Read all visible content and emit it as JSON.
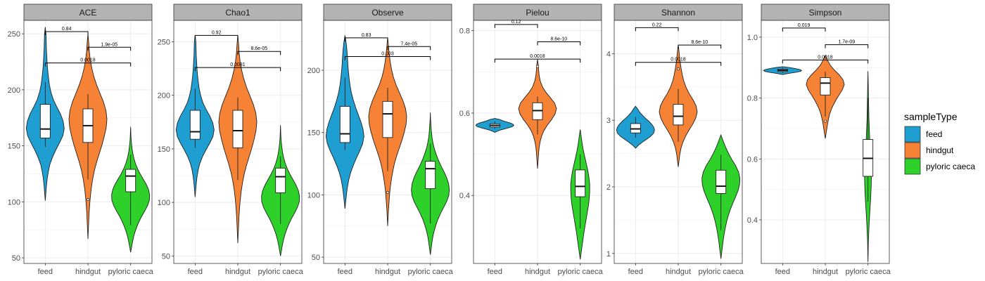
{
  "chart_data": {
    "type": "violin",
    "categories": [
      "feed",
      "hindgut",
      "pyloric caeca"
    ],
    "legend": {
      "title": "sampleType",
      "position": "right",
      "items": [
        {
          "label": "feed",
          "color": "#1f9ed1"
        },
        {
          "label": "hindgut",
          "color": "#f58235"
        },
        {
          "label": "pyloric caeca",
          "color": "#2ed12a"
        }
      ]
    },
    "grid": true,
    "panels": [
      {
        "title": "ACE",
        "ylim": [
          45,
          262
        ],
        "yticks": [
          {
            "v": 50,
            "label": "50"
          },
          {
            "v": 100,
            "label": "100"
          },
          {
            "v": 150,
            "label": "150"
          },
          {
            "v": 200,
            "label": "200"
          },
          {
            "v": 250,
            "label": "250"
          }
        ],
        "groups": [
          {
            "category": "feed",
            "min": 101,
            "max": 256,
            "q1": 157,
            "median": 165,
            "q3": 187,
            "wlo": 149,
            "whi": 207,
            "outliers": [],
            "profile": [
              0,
              0.03,
              0.06,
              0.1,
              0.16,
              0.24,
              0.38,
              0.55,
              0.75,
              0.93,
              1,
              0.94,
              0.8,
              0.6,
              0.42,
              0.3,
              0.22,
              0.17,
              0.13,
              0.1,
              0.08,
              0.06,
              0.05,
              0.04,
              0
            ]
          },
          {
            "category": "hindgut",
            "min": 67,
            "max": 250,
            "q1": 153,
            "median": 168,
            "q3": 183,
            "wlo": 120,
            "whi": 196,
            "outliers": [
              102
            ],
            "profile": [
              0,
              0.02,
              0.04,
              0.06,
              0.09,
              0.13,
              0.18,
              0.25,
              0.34,
              0.46,
              0.6,
              0.74,
              0.86,
              0.96,
              1,
              0.95,
              0.82,
              0.64,
              0.46,
              0.31,
              0.2,
              0.12,
              0.07,
              0.04,
              0
            ]
          },
          {
            "category": "pyloric caeca",
            "min": 55,
            "max": 167,
            "q1": 109,
            "median": 123,
            "q3": 129,
            "wlo": 79,
            "whi": 142,
            "outliers": [],
            "profile": [
              0,
              0.05,
              0.1,
              0.16,
              0.24,
              0.34,
              0.46,
              0.6,
              0.76,
              0.9,
              0.99,
              1,
              0.94,
              0.82,
              0.66,
              0.5,
              0.36,
              0.25,
              0.17,
              0.11,
              0.07,
              0.04,
              0.02,
              0.01,
              0
            ]
          }
        ],
        "comparisons": [
          {
            "a": 0,
            "b": 1,
            "y": 252,
            "label": "0.84"
          },
          {
            "a": 1,
            "b": 2,
            "y": 238,
            "label": "1.9e-05"
          },
          {
            "a": 0,
            "b": 2,
            "y": 224,
            "label": "0.0018"
          }
        ]
      },
      {
        "title": "Chao1",
        "ylim": [
          43,
          270
        ],
        "yticks": [
          {
            "v": 50,
            "label": "50"
          },
          {
            "v": 100,
            "label": "100"
          },
          {
            "v": 150,
            "label": "150"
          },
          {
            "v": 200,
            "label": "200"
          },
          {
            "v": 250,
            "label": "250"
          }
        ],
        "groups": [
          {
            "category": "feed",
            "min": 105,
            "max": 256,
            "q1": 159,
            "median": 166,
            "q3": 186,
            "wlo": 151,
            "whi": 206,
            "outliers": [],
            "profile": [
              0,
              0.03,
              0.06,
              0.1,
              0.16,
              0.25,
              0.39,
              0.57,
              0.77,
              0.94,
              1,
              0.93,
              0.78,
              0.58,
              0.41,
              0.3,
              0.22,
              0.17,
              0.13,
              0.1,
              0.08,
              0.06,
              0.05,
              0.04,
              0
            ]
          },
          {
            "category": "hindgut",
            "min": 62,
            "max": 256,
            "q1": 151,
            "median": 167,
            "q3": 186,
            "wlo": 121,
            "whi": 198,
            "outliers": [],
            "profile": [
              0,
              0.02,
              0.04,
              0.06,
              0.09,
              0.13,
              0.18,
              0.25,
              0.34,
              0.46,
              0.6,
              0.74,
              0.86,
              0.96,
              1,
              0.95,
              0.82,
              0.64,
              0.46,
              0.31,
              0.2,
              0.12,
              0.07,
              0.04,
              0
            ]
          },
          {
            "category": "pyloric caeca",
            "min": 50,
            "max": 172,
            "q1": 109,
            "median": 124,
            "q3": 132,
            "wlo": 80,
            "whi": 143,
            "outliers": [],
            "profile": [
              0,
              0.05,
              0.1,
              0.16,
              0.24,
              0.34,
              0.46,
              0.6,
              0.76,
              0.9,
              0.99,
              1,
              0.94,
              0.82,
              0.66,
              0.5,
              0.36,
              0.25,
              0.17,
              0.11,
              0.07,
              0.04,
              0.02,
              0.01,
              0
            ]
          }
        ],
        "comparisons": [
          {
            "a": 0,
            "b": 1,
            "y": 256,
            "label": "0.92"
          },
          {
            "a": 1,
            "b": 2,
            "y": 241,
            "label": "8.6e-05"
          },
          {
            "a": 0,
            "b": 2,
            "y": 226,
            "label": "0.0081"
          }
        ]
      },
      {
        "title": "Observe",
        "ylim": [
          45,
          240
        ],
        "yticks": [
          {
            "v": 50,
            "label": "50"
          },
          {
            "v": 100,
            "label": "100"
          },
          {
            "v": 150,
            "label": "150"
          },
          {
            "v": 200,
            "label": "200"
          }
        ],
        "groups": [
          {
            "category": "feed",
            "min": 89,
            "max": 228,
            "q1": 142,
            "median": 149,
            "q3": 171,
            "wlo": 136,
            "whi": 194,
            "outliers": [],
            "profile": [
              0,
              0.04,
              0.08,
              0.13,
              0.2,
              0.3,
              0.44,
              0.6,
              0.78,
              0.93,
              1,
              0.95,
              0.84,
              0.7,
              0.56,
              0.44,
              0.34,
              0.27,
              0.22,
              0.18,
              0.15,
              0.13,
              0.1,
              0.06,
              0
            ]
          },
          {
            "category": "hindgut",
            "min": 75,
            "max": 226,
            "q1": 146,
            "median": 165,
            "q3": 175,
            "wlo": 119,
            "whi": 186,
            "outliers": [
              102
            ],
            "profile": [
              0,
              0.02,
              0.04,
              0.07,
              0.1,
              0.14,
              0.2,
              0.27,
              0.36,
              0.48,
              0.62,
              0.76,
              0.88,
              0.97,
              1,
              0.94,
              0.8,
              0.62,
              0.44,
              0.3,
              0.2,
              0.13,
              0.08,
              0.04,
              0
            ]
          },
          {
            "category": "pyloric caeca",
            "min": 52,
            "max": 166,
            "q1": 105,
            "median": 121,
            "q3": 127,
            "wlo": 77,
            "whi": 141,
            "outliers": [],
            "profile": [
              0,
              0.04,
              0.08,
              0.13,
              0.2,
              0.29,
              0.4,
              0.54,
              0.7,
              0.86,
              0.97,
              1,
              0.96,
              0.86,
              0.72,
              0.56,
              0.42,
              0.3,
              0.2,
              0.13,
              0.08,
              0.05,
              0.03,
              0.01,
              0
            ]
          }
        ],
        "comparisons": [
          {
            "a": 0,
            "b": 1,
            "y": 226,
            "label": "0.83"
          },
          {
            "a": 1,
            "b": 2,
            "y": 219,
            "label": "7.4e-05"
          },
          {
            "a": 0,
            "b": 2,
            "y": 211,
            "label": "0.003"
          }
        ]
      },
      {
        "title": "Pielou",
        "ylim": [
          0.235,
          0.825
        ],
        "yticks": [
          {
            "v": 0.4,
            "label": "0.4"
          },
          {
            "v": 0.6,
            "label": "0.6"
          },
          {
            "v": 0.8,
            "label": "0.8"
          }
        ],
        "groups": [
          {
            "category": "feed",
            "min": 0.553,
            "max": 0.587,
            "q1": 0.566,
            "median": 0.57,
            "q3": 0.574,
            "wlo": 0.561,
            "whi": 0.58,
            "outliers": [],
            "profile": [
              0,
              0.12,
              0.28,
              0.5,
              0.74,
              0.92,
              1,
              0.96,
              0.82,
              0.62,
              0.42,
              0.26,
              0
            ]
          },
          {
            "category": "hindgut",
            "min": 0.465,
            "max": 0.73,
            "q1": 0.584,
            "median": 0.606,
            "q3": 0.625,
            "wlo": 0.548,
            "whi": 0.64,
            "outliers": [
              0.713
            ],
            "profile": [
              0,
              0.02,
              0.04,
              0.06,
              0.09,
              0.14,
              0.22,
              0.34,
              0.52,
              0.74,
              0.92,
              1,
              0.9,
              0.68,
              0.44,
              0.26,
              0.15,
              0.09,
              0.06,
              0.04,
              0
            ]
          },
          {
            "category": "pyloric caeca",
            "min": 0.245,
            "max": 0.56,
            "q1": 0.397,
            "median": 0.422,
            "q3": 0.462,
            "wlo": 0.32,
            "whi": 0.5,
            "outliers": [],
            "profile": [
              0,
              0.05,
              0.1,
              0.15,
              0.2,
              0.26,
              0.32,
              0.38,
              0.44,
              0.48,
              0.5,
              0.5,
              0.46,
              0.4,
              0.32,
              0.24,
              0.16,
              0.1,
              0.05,
              0
            ]
          }
        ],
        "comparisons": [
          {
            "a": 0,
            "b": 1,
            "y": 0.815,
            "label": "0.12"
          },
          {
            "a": 1,
            "b": 2,
            "y": 0.773,
            "label": "8.6e-10"
          },
          {
            "a": 0,
            "b": 2,
            "y": 0.731,
            "label": "0.0018"
          }
        ]
      },
      {
        "title": "Shannon",
        "ylim": [
          0.85,
          4.5
        ],
        "yticks": [
          {
            "v": 1,
            "label": "1"
          },
          {
            "v": 2,
            "label": "2"
          },
          {
            "v": 3,
            "label": "3"
          },
          {
            "v": 4,
            "label": "4"
          }
        ],
        "groups": [
          {
            "category": "feed",
            "min": 2.58,
            "max": 3.21,
            "q1": 2.81,
            "median": 2.87,
            "q3": 2.95,
            "wlo": 2.74,
            "whi": 3.05,
            "outliers": [],
            "profile": [
              0,
              0.15,
              0.35,
              0.58,
              0.8,
              0.95,
              1,
              0.96,
              0.85,
              0.7,
              0.52,
              0.36,
              0.22,
              0.12,
              0
            ]
          },
          {
            "category": "hindgut",
            "min": 2.3,
            "max": 4.13,
            "q1": 2.93,
            "median": 3.06,
            "q3": 3.24,
            "wlo": 2.68,
            "whi": 3.47,
            "outliers": [
              3.77
            ],
            "profile": [
              0,
              0.04,
              0.08,
              0.14,
              0.24,
              0.38,
              0.56,
              0.76,
              0.92,
              1,
              0.94,
              0.78,
              0.58,
              0.42,
              0.3,
              0.22,
              0.16,
              0.11,
              0.07,
              0.04,
              0
            ]
          },
          {
            "category": "pyloric caeca",
            "min": 0.92,
            "max": 2.78,
            "q1": 1.9,
            "median": 2.01,
            "q3": 2.25,
            "wlo": 1.35,
            "whi": 2.48,
            "outliers": [],
            "profile": [
              0,
              0.04,
              0.08,
              0.12,
              0.17,
              0.23,
              0.3,
              0.39,
              0.5,
              0.63,
              0.77,
              0.9,
              0.98,
              1,
              0.93,
              0.78,
              0.58,
              0.4,
              0.25,
              0.12,
              0
            ]
          }
        ],
        "comparisons": [
          {
            "a": 0,
            "b": 1,
            "y": 4.39,
            "label": "0.22"
          },
          {
            "a": 1,
            "b": 2,
            "y": 4.13,
            "label": "8.6e-10"
          },
          {
            "a": 0,
            "b": 2,
            "y": 3.87,
            "label": "0.0018"
          }
        ]
      },
      {
        "title": "Simpson",
        "ylim": [
          0.257,
          1.055
        ],
        "yticks": [
          {
            "v": 0.4,
            "label": "0.4"
          },
          {
            "v": 0.6,
            "label": "0.6"
          },
          {
            "v": 0.8,
            "label": "0.8"
          },
          {
            "v": 1.0,
            "label": "1.0"
          }
        ],
        "groups": [
          {
            "category": "feed",
            "min": 0.877,
            "max": 0.903,
            "q1": 0.887,
            "median": 0.891,
            "q3": 0.895,
            "wlo": 0.882,
            "whi": 0.899,
            "outliers": [],
            "profile": [
              0,
              0.2,
              0.45,
              0.72,
              0.92,
              1,
              0.95,
              0.8,
              0.58,
              0.35,
              0
            ]
          },
          {
            "category": "hindgut",
            "min": 0.667,
            "max": 0.94,
            "q1": 0.81,
            "median": 0.849,
            "q3": 0.867,
            "wlo": 0.74,
            "whi": 0.886,
            "outliers": [
              0.724
            ],
            "profile": [
              0,
              0.04,
              0.08,
              0.12,
              0.17,
              0.23,
              0.32,
              0.44,
              0.58,
              0.74,
              0.9,
              1,
              0.94,
              0.74,
              0.48,
              0.26,
              0.12,
              0
            ]
          },
          {
            "category": "pyloric caeca",
            "min": 0.262,
            "max": 0.888,
            "q1": 0.543,
            "median": 0.602,
            "q3": 0.664,
            "wlo": 0.46,
            "whi": 0.8,
            "outliers": [],
            "profile": [
              0,
              0.01,
              0.02,
              0.04,
              0.06,
              0.09,
              0.12,
              0.15,
              0.17,
              0.18,
              0.17,
              0.15,
              0.12,
              0.09,
              0.07,
              0.05,
              0.04,
              0.03,
              0.02,
              0.01,
              0
            ]
          }
        ],
        "comparisons": [
          {
            "a": 0,
            "b": 1,
            "y": 1.03,
            "label": "0.019"
          },
          {
            "a": 1,
            "b": 2,
            "y": 0.975,
            "label": "1.7e-09"
          },
          {
            "a": 0,
            "b": 2,
            "y": 0.925,
            "label": "0.0018"
          }
        ]
      }
    ]
  }
}
